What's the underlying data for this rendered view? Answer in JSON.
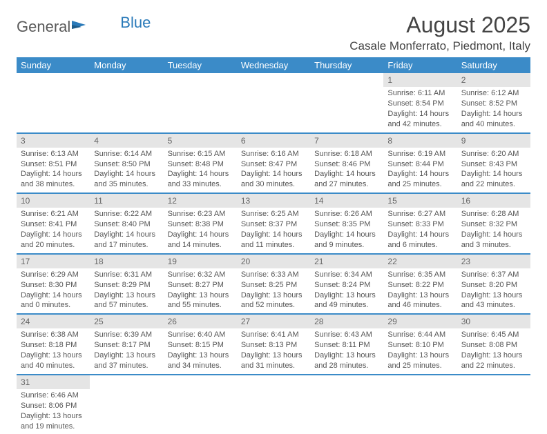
{
  "logo": {
    "text1": "General",
    "text2": "Blue"
  },
  "title": "August 2025",
  "location": "Casale Monferrato, Piedmont, Italy",
  "colors": {
    "header_bg": "#3b8bc8",
    "header_text": "#ffffff",
    "row_divider": "#3b8bc8",
    "daynum_bg": "#e5e5e5",
    "text": "#555555",
    "logo_gray": "#5a5a5a",
    "logo_blue": "#2a7ab9"
  },
  "weekdays": [
    "Sunday",
    "Monday",
    "Tuesday",
    "Wednesday",
    "Thursday",
    "Friday",
    "Saturday"
  ],
  "weeks": [
    [
      null,
      null,
      null,
      null,
      null,
      {
        "n": "1",
        "sunrise": "Sunrise: 6:11 AM",
        "sunset": "Sunset: 8:54 PM",
        "daylight": "Daylight: 14 hours and 42 minutes."
      },
      {
        "n": "2",
        "sunrise": "Sunrise: 6:12 AM",
        "sunset": "Sunset: 8:52 PM",
        "daylight": "Daylight: 14 hours and 40 minutes."
      }
    ],
    [
      {
        "n": "3",
        "sunrise": "Sunrise: 6:13 AM",
        "sunset": "Sunset: 8:51 PM",
        "daylight": "Daylight: 14 hours and 38 minutes."
      },
      {
        "n": "4",
        "sunrise": "Sunrise: 6:14 AM",
        "sunset": "Sunset: 8:50 PM",
        "daylight": "Daylight: 14 hours and 35 minutes."
      },
      {
        "n": "5",
        "sunrise": "Sunrise: 6:15 AM",
        "sunset": "Sunset: 8:48 PM",
        "daylight": "Daylight: 14 hours and 33 minutes."
      },
      {
        "n": "6",
        "sunrise": "Sunrise: 6:16 AM",
        "sunset": "Sunset: 8:47 PM",
        "daylight": "Daylight: 14 hours and 30 minutes."
      },
      {
        "n": "7",
        "sunrise": "Sunrise: 6:18 AM",
        "sunset": "Sunset: 8:46 PM",
        "daylight": "Daylight: 14 hours and 27 minutes."
      },
      {
        "n": "8",
        "sunrise": "Sunrise: 6:19 AM",
        "sunset": "Sunset: 8:44 PM",
        "daylight": "Daylight: 14 hours and 25 minutes."
      },
      {
        "n": "9",
        "sunrise": "Sunrise: 6:20 AM",
        "sunset": "Sunset: 8:43 PM",
        "daylight": "Daylight: 14 hours and 22 minutes."
      }
    ],
    [
      {
        "n": "10",
        "sunrise": "Sunrise: 6:21 AM",
        "sunset": "Sunset: 8:41 PM",
        "daylight": "Daylight: 14 hours and 20 minutes."
      },
      {
        "n": "11",
        "sunrise": "Sunrise: 6:22 AM",
        "sunset": "Sunset: 8:40 PM",
        "daylight": "Daylight: 14 hours and 17 minutes."
      },
      {
        "n": "12",
        "sunrise": "Sunrise: 6:23 AM",
        "sunset": "Sunset: 8:38 PM",
        "daylight": "Daylight: 14 hours and 14 minutes."
      },
      {
        "n": "13",
        "sunrise": "Sunrise: 6:25 AM",
        "sunset": "Sunset: 8:37 PM",
        "daylight": "Daylight: 14 hours and 11 minutes."
      },
      {
        "n": "14",
        "sunrise": "Sunrise: 6:26 AM",
        "sunset": "Sunset: 8:35 PM",
        "daylight": "Daylight: 14 hours and 9 minutes."
      },
      {
        "n": "15",
        "sunrise": "Sunrise: 6:27 AM",
        "sunset": "Sunset: 8:33 PM",
        "daylight": "Daylight: 14 hours and 6 minutes."
      },
      {
        "n": "16",
        "sunrise": "Sunrise: 6:28 AM",
        "sunset": "Sunset: 8:32 PM",
        "daylight": "Daylight: 14 hours and 3 minutes."
      }
    ],
    [
      {
        "n": "17",
        "sunrise": "Sunrise: 6:29 AM",
        "sunset": "Sunset: 8:30 PM",
        "daylight": "Daylight: 14 hours and 0 minutes."
      },
      {
        "n": "18",
        "sunrise": "Sunrise: 6:31 AM",
        "sunset": "Sunset: 8:29 PM",
        "daylight": "Daylight: 13 hours and 57 minutes."
      },
      {
        "n": "19",
        "sunrise": "Sunrise: 6:32 AM",
        "sunset": "Sunset: 8:27 PM",
        "daylight": "Daylight: 13 hours and 55 minutes."
      },
      {
        "n": "20",
        "sunrise": "Sunrise: 6:33 AM",
        "sunset": "Sunset: 8:25 PM",
        "daylight": "Daylight: 13 hours and 52 minutes."
      },
      {
        "n": "21",
        "sunrise": "Sunrise: 6:34 AM",
        "sunset": "Sunset: 8:24 PM",
        "daylight": "Daylight: 13 hours and 49 minutes."
      },
      {
        "n": "22",
        "sunrise": "Sunrise: 6:35 AM",
        "sunset": "Sunset: 8:22 PM",
        "daylight": "Daylight: 13 hours and 46 minutes."
      },
      {
        "n": "23",
        "sunrise": "Sunrise: 6:37 AM",
        "sunset": "Sunset: 8:20 PM",
        "daylight": "Daylight: 13 hours and 43 minutes."
      }
    ],
    [
      {
        "n": "24",
        "sunrise": "Sunrise: 6:38 AM",
        "sunset": "Sunset: 8:18 PM",
        "daylight": "Daylight: 13 hours and 40 minutes."
      },
      {
        "n": "25",
        "sunrise": "Sunrise: 6:39 AM",
        "sunset": "Sunset: 8:17 PM",
        "daylight": "Daylight: 13 hours and 37 minutes."
      },
      {
        "n": "26",
        "sunrise": "Sunrise: 6:40 AM",
        "sunset": "Sunset: 8:15 PM",
        "daylight": "Daylight: 13 hours and 34 minutes."
      },
      {
        "n": "27",
        "sunrise": "Sunrise: 6:41 AM",
        "sunset": "Sunset: 8:13 PM",
        "daylight": "Daylight: 13 hours and 31 minutes."
      },
      {
        "n": "28",
        "sunrise": "Sunrise: 6:43 AM",
        "sunset": "Sunset: 8:11 PM",
        "daylight": "Daylight: 13 hours and 28 minutes."
      },
      {
        "n": "29",
        "sunrise": "Sunrise: 6:44 AM",
        "sunset": "Sunset: 8:10 PM",
        "daylight": "Daylight: 13 hours and 25 minutes."
      },
      {
        "n": "30",
        "sunrise": "Sunrise: 6:45 AM",
        "sunset": "Sunset: 8:08 PM",
        "daylight": "Daylight: 13 hours and 22 minutes."
      }
    ],
    [
      {
        "n": "31",
        "sunrise": "Sunrise: 6:46 AM",
        "sunset": "Sunset: 8:06 PM",
        "daylight": "Daylight: 13 hours and 19 minutes."
      },
      null,
      null,
      null,
      null,
      null,
      null
    ]
  ]
}
